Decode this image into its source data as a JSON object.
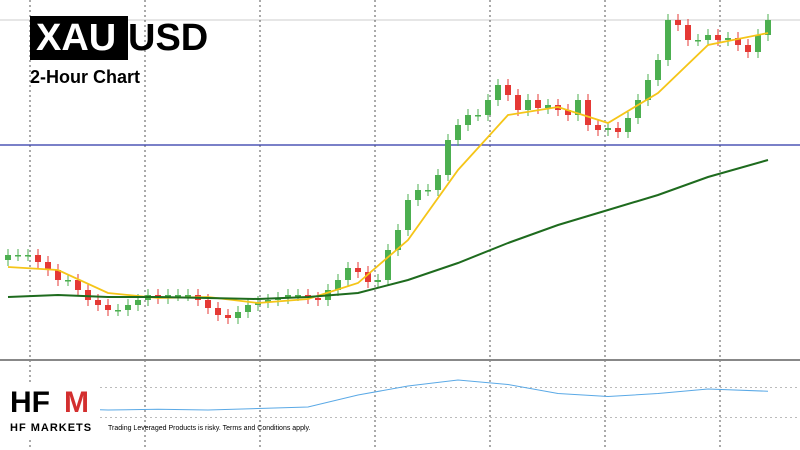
{
  "chart_data": {
    "type": "candlestick",
    "symbol_base": "XAU",
    "symbol_quote": "USD",
    "subtitle": "2-Hour Chart",
    "logo_left": "HF",
    "logo_right": "M",
    "brand": "HF MARKETS",
    "disclaimer": "Trading Leveraged Products is risky. Terms and Conditions apply.",
    "ylim": [
      0,
      350
    ],
    "up_color": "#4caf50",
    "down_color": "#e53935",
    "open": [
      95,
      100,
      100,
      100,
      93,
      85,
      75,
      75,
      65,
      55,
      50,
      45,
      45,
      50,
      55,
      60,
      57,
      60,
      60,
      60,
      55,
      47,
      40,
      37,
      43,
      50,
      53,
      55,
      57,
      60,
      60,
      57,
      55,
      65,
      75,
      87,
      83,
      73,
      75,
      105,
      125,
      155,
      165,
      165,
      180,
      215,
      230,
      240,
      240,
      255,
      270,
      260,
      245,
      255,
      247,
      250,
      245,
      240,
      255,
      230,
      225,
      227,
      223,
      237,
      255,
      275,
      295,
      335,
      330,
      315,
      315,
      320,
      315,
      317,
      310,
      303,
      320
    ],
    "high": [
      106,
      106,
      106,
      106,
      99,
      91,
      81,
      81,
      71,
      61,
      56,
      51,
      56,
      61,
      66,
      66,
      66,
      66,
      66,
      66,
      61,
      53,
      46,
      49,
      56,
      59,
      61,
      63,
      66,
      66,
      66,
      63,
      71,
      81,
      93,
      93,
      89,
      81,
      111,
      131,
      161,
      171,
      171,
      186,
      221,
      236,
      246,
      246,
      261,
      276,
      276,
      266,
      261,
      261,
      256,
      256,
      251,
      261,
      261,
      236,
      233,
      233,
      243,
      261,
      281,
      301,
      341,
      341,
      336,
      321,
      326,
      326,
      323,
      323,
      316,
      326,
      341
    ],
    "low": [
      89,
      94,
      94,
      87,
      79,
      69,
      69,
      59,
      49,
      44,
      39,
      39,
      39,
      44,
      49,
      51,
      51,
      54,
      54,
      49,
      41,
      34,
      31,
      31,
      37,
      44,
      47,
      49,
      51,
      54,
      51,
      49,
      49,
      59,
      69,
      77,
      67,
      67,
      69,
      99,
      119,
      149,
      159,
      159,
      174,
      209,
      224,
      234,
      234,
      249,
      254,
      239,
      239,
      241,
      241,
      239,
      234,
      234,
      224,
      219,
      219,
      217,
      217,
      231,
      249,
      269,
      289,
      324,
      309,
      309,
      309,
      309,
      309,
      304,
      297,
      297,
      314
    ],
    "close": [
      100,
      100,
      100,
      93,
      85,
      75,
      75,
      65,
      55,
      50,
      45,
      45,
      50,
      55,
      60,
      57,
      60,
      60,
      60,
      55,
      47,
      40,
      37,
      43,
      50,
      53,
      55,
      57,
      60,
      60,
      57,
      55,
      65,
      75,
      87,
      83,
      73,
      75,
      105,
      125,
      155,
      165,
      165,
      180,
      215,
      230,
      240,
      240,
      255,
      270,
      260,
      245,
      255,
      247,
      250,
      245,
      240,
      255,
      230,
      225,
      227,
      223,
      237,
      255,
      275,
      295,
      335,
      330,
      315,
      315,
      320,
      315,
      317,
      310,
      303,
      320,
      335
    ],
    "hline": {
      "value": 210,
      "color": "#2b35a8"
    },
    "indicator_x": [
      0,
      5,
      10,
      15,
      20,
      25,
      30,
      35,
      40,
      45,
      50,
      55,
      60,
      65,
      70,
      76
    ],
    "series": [
      {
        "color": "#f5c518",
        "values": [
          88,
          85,
          62,
          57,
          58,
          52,
          56,
          72,
          115,
          185,
          240,
          248,
          232,
          262,
          310,
          322
        ]
      },
      {
        "color": "#1e6b1e",
        "values": [
          58,
          60,
          58,
          58,
          57,
          56,
          58,
          62,
          75,
          92,
          112,
          130,
          145,
          160,
          178,
          195
        ]
      }
    ],
    "oscillator": {
      "color": "#5aa9e6",
      "ylim": [
        0,
        100
      ],
      "levels": [
        70,
        30
      ],
      "values": [
        45,
        42,
        40,
        41,
        40,
        42,
        44,
        60,
        72,
        80,
        74,
        62,
        58,
        62,
        68,
        65
      ]
    }
  }
}
